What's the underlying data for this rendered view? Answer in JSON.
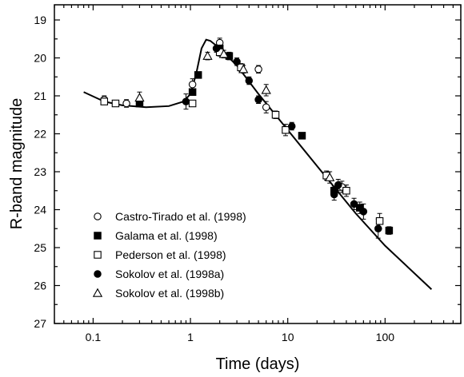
{
  "chart_data": {
    "type": "scatter",
    "xlabel": "Time (days)",
    "ylabel": "R-band magnitude",
    "x_scale": "log",
    "xlim": [
      0.04,
      600
    ],
    "ylim": [
      27,
      18.6
    ],
    "y_inverted": true,
    "grid": false,
    "legend_position": "bottom-left",
    "x_tick_labels": [
      "0.1",
      "1",
      "10",
      "100"
    ],
    "y_tick_labels": [
      "19",
      "20",
      "21",
      "22",
      "23",
      "24",
      "25",
      "26",
      "27"
    ],
    "series": [
      {
        "name": "Castro-Tirado et al. (1998)",
        "marker": "circle-open",
        "points": [
          [
            0.13,
            21.1
          ],
          [
            0.22,
            21.2
          ],
          [
            1.05,
            20.7
          ],
          [
            2.0,
            19.6
          ],
          [
            5.0,
            20.3
          ],
          [
            6.0,
            21.3
          ],
          [
            36,
            23.4
          ]
        ],
        "errors": [
          0.1,
          0.1,
          0.15,
          0.12,
          0.1,
          0.15,
          0.15
        ]
      },
      {
        "name": "Galama et al. (1998)",
        "marker": "square-filled",
        "points": [
          [
            0.3,
            21.2
          ],
          [
            1.05,
            20.9
          ],
          [
            1.2,
            20.45
          ],
          [
            2.0,
            19.75
          ],
          [
            2.5,
            19.95
          ],
          [
            14,
            22.05
          ],
          [
            30,
            23.5
          ],
          [
            55,
            23.95
          ],
          [
            110,
            24.55
          ]
        ],
        "errors": [
          0.05,
          0.05,
          0.05,
          0.1,
          0.1,
          0.08,
          0.12,
          0.15,
          0.1
        ]
      },
      {
        "name": "Pederson et al. (1998)",
        "marker": "square-open",
        "points": [
          [
            0.13,
            21.15
          ],
          [
            0.17,
            21.2
          ],
          [
            1.05,
            21.2
          ],
          [
            2.0,
            19.85
          ],
          [
            3.3,
            20.25
          ],
          [
            7.5,
            21.5
          ],
          [
            9.5,
            21.9
          ],
          [
            25,
            23.1
          ],
          [
            40,
            23.5
          ],
          [
            88,
            24.3
          ]
        ],
        "errors": [
          0.05,
          0.05,
          0.08,
          0.1,
          0.1,
          0.1,
          0.15,
          0.12,
          0.15,
          0.2
        ]
      },
      {
        "name": "Sokolov et al. (1998a)",
        "marker": "circle-filled",
        "points": [
          [
            0.9,
            21.15
          ],
          [
            1.85,
            19.75
          ],
          [
            3.0,
            20.1
          ],
          [
            4.0,
            20.6
          ],
          [
            5.0,
            21.1
          ],
          [
            11,
            21.8
          ],
          [
            30,
            23.6
          ],
          [
            33,
            23.35
          ],
          [
            48,
            23.85
          ],
          [
            60,
            24.05
          ],
          [
            85,
            24.5
          ]
        ],
        "errors": [
          0.2,
          0.1,
          0.1,
          0.1,
          0.1,
          0.1,
          0.15,
          0.15,
          0.15,
          0.2,
          0.25
        ]
      },
      {
        "name": "Sokolov et al. (1998b)",
        "marker": "triangle-open",
        "points": [
          [
            0.3,
            21.05
          ],
          [
            1.5,
            19.95
          ],
          [
            2.2,
            19.9
          ],
          [
            3.5,
            20.3
          ],
          [
            6.0,
            20.85
          ],
          [
            27,
            23.15
          ]
        ],
        "errors": [
          0.15,
          0.1,
          0.1,
          0.1,
          0.15,
          0.15
        ]
      }
    ],
    "model_curve": {
      "points": [
        [
          0.08,
          20.9
        ],
        [
          0.13,
          21.15
        ],
        [
          0.2,
          21.25
        ],
        [
          0.35,
          21.3
        ],
        [
          0.6,
          21.27
        ],
        [
          0.85,
          21.15
        ],
        [
          1.0,
          20.95
        ],
        [
          1.15,
          20.4
        ],
        [
          1.3,
          19.75
        ],
        [
          1.45,
          19.52
        ],
        [
          1.6,
          19.55
        ],
        [
          2.0,
          19.75
        ],
        [
          3.0,
          20.2
        ],
        [
          5.0,
          20.95
        ],
        [
          10,
          21.9
        ],
        [
          20,
          22.85
        ],
        [
          50,
          24.1
        ],
        [
          100,
          24.95
        ],
        [
          300,
          26.1
        ]
      ]
    }
  }
}
